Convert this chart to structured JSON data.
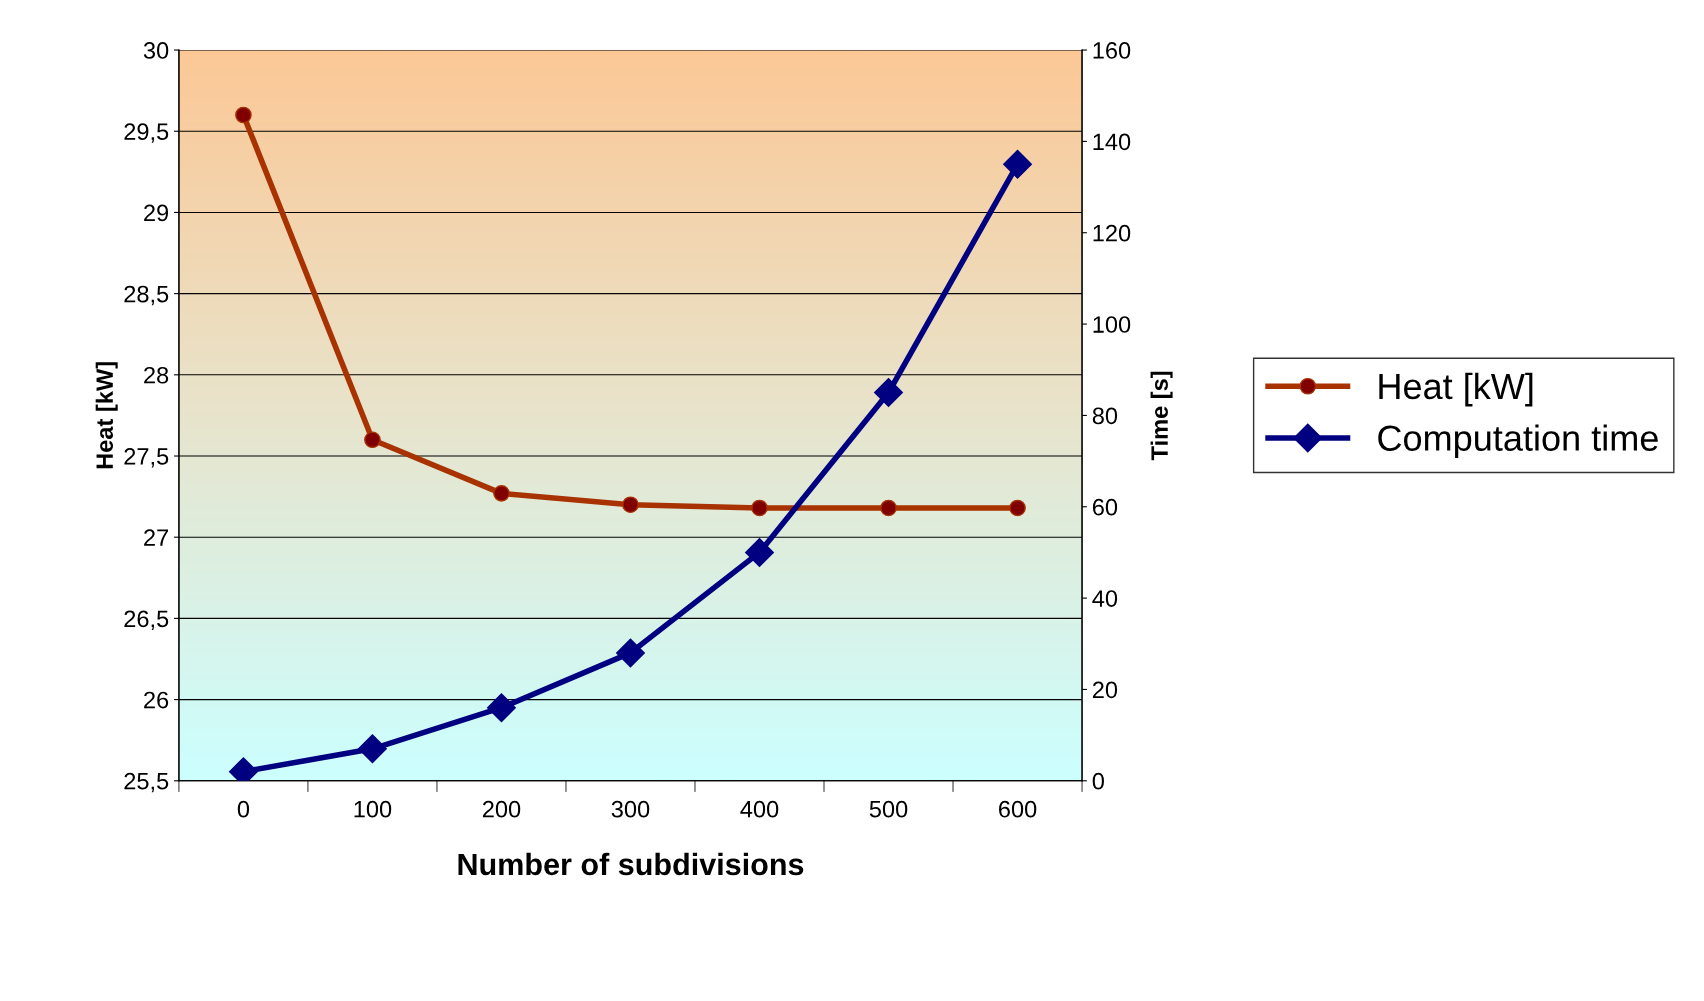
{
  "chart_data": {
    "type": "line",
    "xlabel": "Number of subdivisions",
    "ylabel": "Heat [kW]",
    "y2label": "Time [s]",
    "categories": [
      "0",
      "100",
      "200",
      "300",
      "400",
      "500",
      "600"
    ],
    "series": [
      {
        "name": "Heat [kW]",
        "color": "#a83300",
        "marker": "circle",
        "values": [
          29.6,
          27.6,
          27.27,
          27.2,
          27.18,
          27.18,
          27.18
        ]
      },
      {
        "name": "Computation time",
        "color": "#000080",
        "marker": "diamond",
        "axis": "y2",
        "values": [
          2,
          7,
          16,
          28,
          50,
          85,
          135
        ]
      }
    ],
    "ylim": [
      25.5,
      30
    ],
    "yticks": [
      {
        "value": 25.5,
        "label": "25,5"
      },
      26,
      {
        "value": 26.5,
        "label": "26,5"
      },
      27,
      {
        "value": 27.5,
        "label": "27,5"
      },
      28,
      {
        "value": 28.5,
        "label": "28,5"
      },
      29,
      {
        "value": 29.5,
        "label": "29,5"
      },
      30
    ],
    "y2lim": [
      0,
      160
    ],
    "y2ticks": [
      0,
      20,
      40,
      60,
      80,
      100,
      120,
      140,
      160
    ],
    "grid": "y",
    "legend": "right",
    "line_style": "solid"
  }
}
